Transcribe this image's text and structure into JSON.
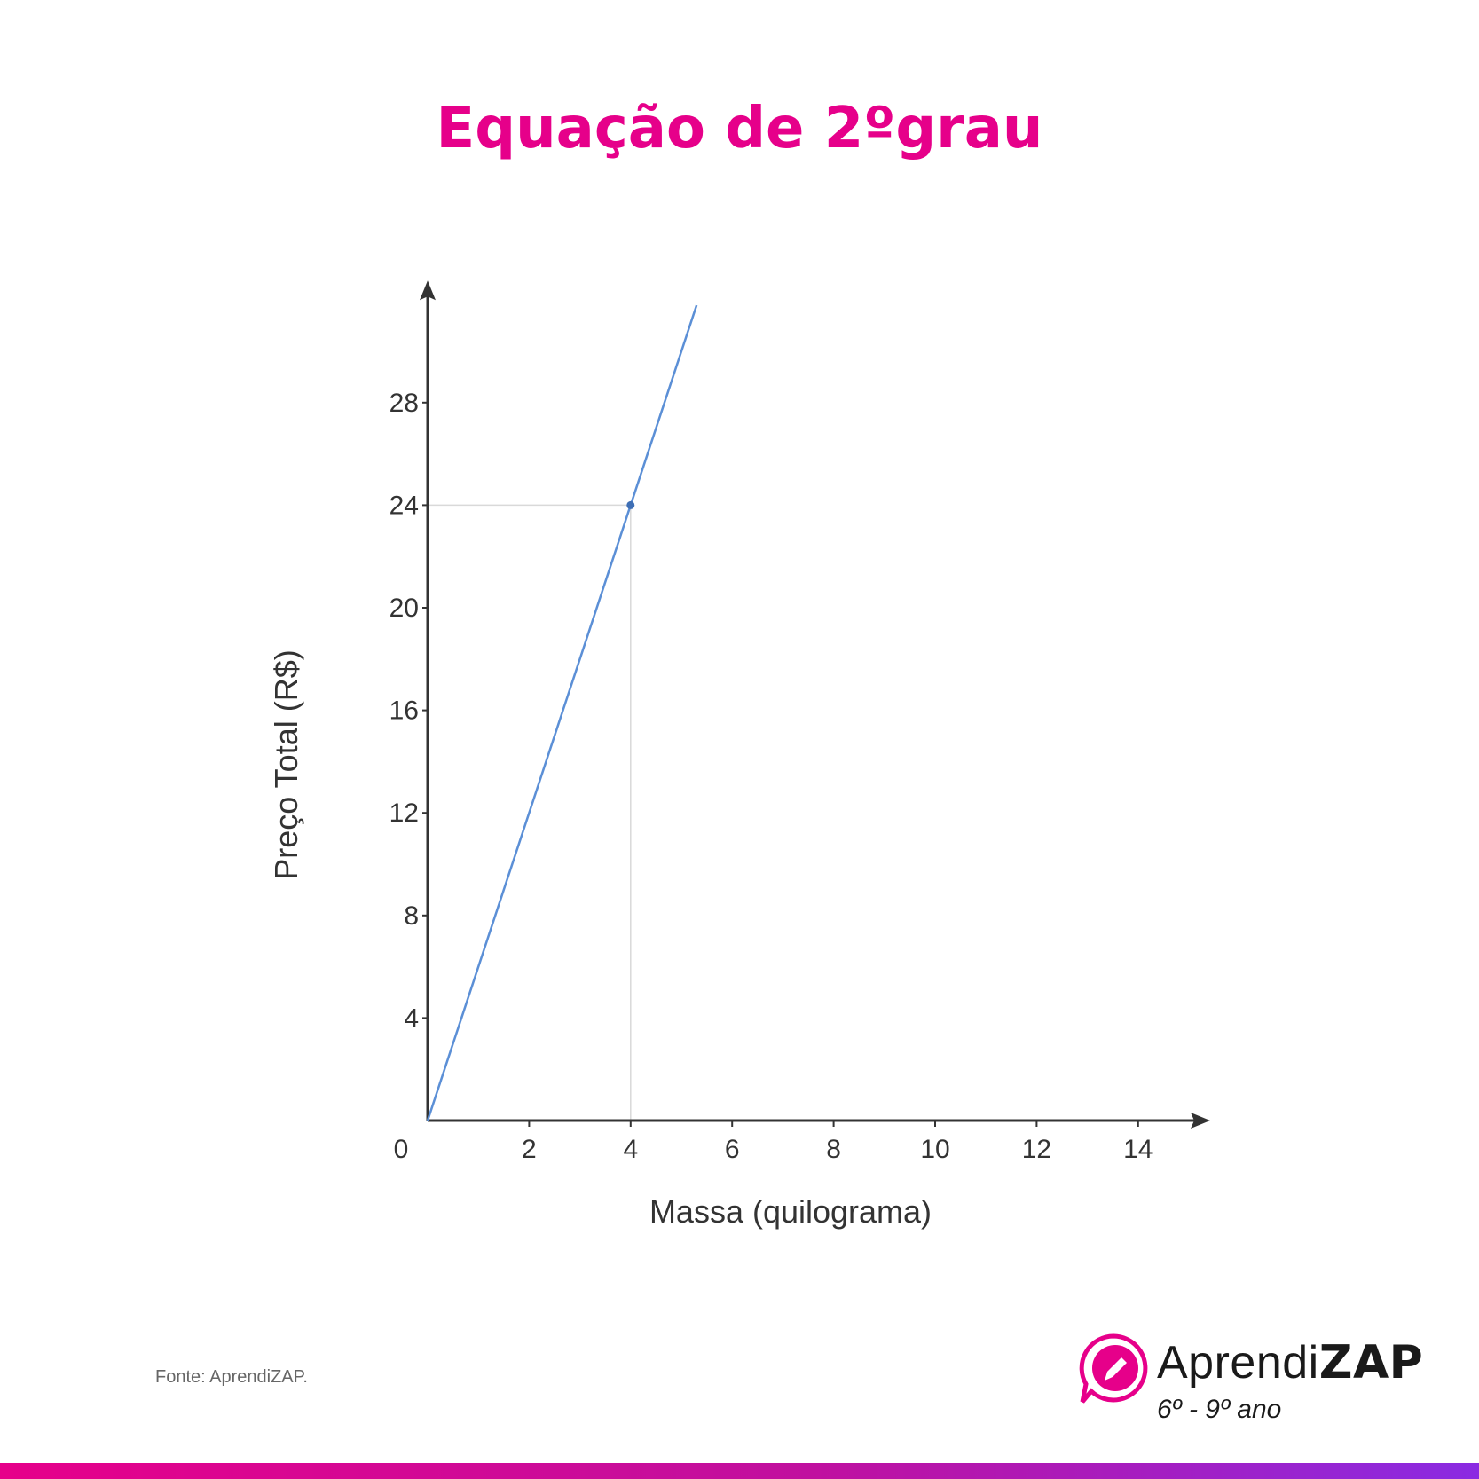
{
  "page": {
    "title": "Equação de 2ºgrau",
    "source": "Fonte: AprendiZAP."
  },
  "brand": {
    "name_light": "Aprendi",
    "name_bold": "ZAP",
    "subtitle": "6º - 9º ano",
    "icon": "pencil-chat-bubble-icon",
    "accent": "#e6008a"
  },
  "chart_data": {
    "type": "line",
    "xlabel": "Massa (quilograma)",
    "ylabel": "Preço Total (R$)",
    "xlim": [
      0,
      15
    ],
    "ylim": [
      0,
      32
    ],
    "x_ticks": [
      0,
      2,
      4,
      6,
      8,
      10,
      12,
      14
    ],
    "y_ticks": [
      4,
      8,
      12,
      16,
      20,
      24,
      28
    ],
    "grid": false,
    "line_color": "#5b8fd6",
    "series": [
      {
        "x": [
          0,
          5.3
        ],
        "y": [
          0,
          31.8
        ]
      }
    ],
    "highlight_point": {
      "x": 4,
      "y": 24
    },
    "guide_lines": true
  }
}
